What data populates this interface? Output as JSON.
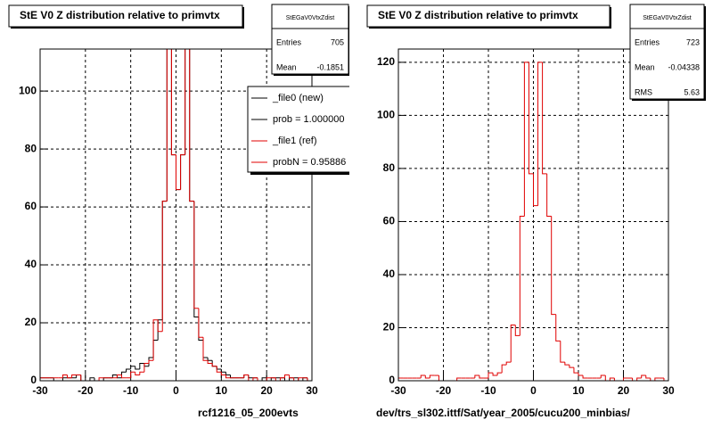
{
  "chart_data": [
    {
      "type": "histogram",
      "title": "StE V0 Z distribution relative to primvtx",
      "xlabel": "rcf1216_05_200evts",
      "bins": [
        -30,
        -29,
        -28,
        -27,
        -26,
        -25,
        -24,
        -23,
        -22,
        -21,
        -20,
        -19,
        -18,
        -17,
        -16,
        -15,
        -14,
        -13,
        -12,
        -11,
        -10,
        -9,
        -8,
        -7,
        -6,
        -5,
        -4,
        -3,
        -2,
        -1,
        0,
        1,
        2,
        3,
        4,
        5,
        6,
        7,
        8,
        9,
        10,
        11,
        12,
        13,
        14,
        15,
        16,
        17,
        18,
        19,
        20,
        21,
        22,
        23,
        24,
        25,
        26,
        27,
        28,
        29,
        30
      ],
      "series": [
        {
          "name": "_file0 (new)",
          "note": "prob = 1.000000",
          "color": "#000000",
          "values": [
            1,
            1,
            1,
            0,
            0,
            1,
            1,
            1,
            2,
            0,
            0,
            1,
            0,
            0,
            1,
            1,
            2,
            1,
            3,
            4,
            5,
            4,
            6,
            5,
            8,
            14,
            21,
            62,
            120,
            78,
            66,
            78,
            120,
            62,
            22,
            14,
            8,
            7,
            5,
            4,
            3,
            2,
            1,
            1,
            1,
            2,
            1,
            1,
            0,
            1,
            0,
            1,
            1,
            1,
            0,
            1,
            1,
            0,
            1,
            0
          ]
        },
        {
          "name": "_file1 (ref)",
          "note": "probN = 0.95886",
          "color": "#e00000",
          "values": [
            1,
            1,
            1,
            1,
            1,
            2,
            1,
            2,
            2,
            0,
            0,
            0,
            0,
            1,
            1,
            1,
            1,
            2,
            1,
            1,
            3,
            2,
            3,
            6,
            7,
            21,
            17,
            62,
            120,
            78,
            66,
            78,
            120,
            62,
            25,
            15,
            7,
            6,
            5,
            3,
            2,
            1,
            1,
            1,
            1,
            2,
            0,
            1,
            0,
            0,
            1,
            1,
            0,
            1,
            2,
            1,
            0,
            1,
            1,
            0
          ]
        }
      ],
      "xlim": [
        -30,
        30
      ],
      "xticks": [
        -30,
        -20,
        -10,
        0,
        10,
        20,
        30
      ],
      "ylim": [
        0,
        114.5
      ],
      "yticks": [
        0,
        20,
        40,
        60,
        80,
        100
      ],
      "grid": true,
      "stats": {
        "name": "StEGaV0VtxZdist",
        "rows": [
          {
            "label": "Entries",
            "value": 705
          },
          {
            "label": "Mean",
            "value": -0.1851
          }
        ]
      }
    },
    {
      "type": "histogram",
      "title": "StE V0 Z distribution relative to primvtx",
      "xlabel": "dev/trs_sl302.ittf/Sat/year_2005/cucu200_minbias/",
      "bins": [
        -30,
        -29,
        -28,
        -27,
        -26,
        -25,
        -24,
        -23,
        -22,
        -21,
        -20,
        -19,
        -18,
        -17,
        -16,
        -15,
        -14,
        -13,
        -12,
        -11,
        -10,
        -9,
        -8,
        -7,
        -6,
        -5,
        -4,
        -3,
        -2,
        -1,
        0,
        1,
        2,
        3,
        4,
        5,
        6,
        7,
        8,
        9,
        10,
        11,
        12,
        13,
        14,
        15,
        16,
        17,
        18,
        19,
        20,
        21,
        22,
        23,
        24,
        25,
        26,
        27,
        28,
        29,
        30
      ],
      "series": [
        {
          "color": "#e00000",
          "values": [
            1,
            1,
            1,
            1,
            1,
            2,
            1,
            2,
            2,
            0,
            0,
            0,
            0,
            1,
            1,
            1,
            1,
            2,
            1,
            1,
            3,
            2,
            3,
            6,
            7,
            21,
            17,
            62,
            120,
            78,
            66,
            120,
            78,
            62,
            25,
            15,
            7,
            6,
            5,
            3,
            2,
            1,
            1,
            1,
            1,
            2,
            0,
            1,
            0,
            0,
            1,
            1,
            0,
            1,
            2,
            1,
            0,
            1,
            1,
            0
          ]
        }
      ],
      "xlim": [
        -30,
        30
      ],
      "xticks": [
        -30,
        -20,
        -10,
        0,
        10,
        20,
        30
      ],
      "ylim": [
        0,
        125
      ],
      "yticks": [
        0,
        20,
        40,
        60,
        80,
        100,
        120
      ],
      "grid": true,
      "stats": {
        "name": "StEGaV0VtxZdist",
        "rows": [
          {
            "label": "Entries",
            "value": 723
          },
          {
            "label": "Mean",
            "value": -0.04338
          },
          {
            "label": "RMS",
            "value": 5.63
          }
        ]
      }
    }
  ]
}
